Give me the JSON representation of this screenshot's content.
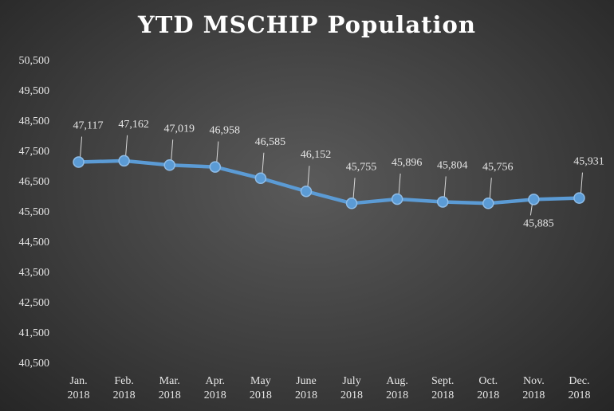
{
  "chart_data": {
    "type": "line",
    "title": "YTD MSCHIP Population",
    "categories": [
      [
        "Jan.",
        "2018"
      ],
      [
        "Feb.",
        "2018"
      ],
      [
        "Mar.",
        "2018"
      ],
      [
        "Apr.",
        "2018"
      ],
      [
        "May",
        "2018"
      ],
      [
        "June",
        "2018"
      ],
      [
        "July",
        "2018"
      ],
      [
        "Aug.",
        "2018"
      ],
      [
        "Sept.",
        "2018"
      ],
      [
        "Oct.",
        "2018"
      ],
      [
        "Nov.",
        "2018"
      ],
      [
        "Dec.",
        "2018"
      ]
    ],
    "series": [
      {
        "values": [
          47117,
          47162,
          47019,
          46958,
          46585,
          46152,
          45755,
          45896,
          45804,
          45756,
          45885,
          45931
        ],
        "labels": [
          "47,117",
          "47,162",
          "47,019",
          "46,958",
          "46,585",
          "46,152",
          "45,755",
          "45,896",
          "45,804",
          "45,756",
          "45,885",
          "45,931"
        ],
        "color": "#5b9bd5"
      }
    ],
    "yticks": [
      "40,500",
      "41,500",
      "42,500",
      "43,500",
      "44,500",
      "45,500",
      "46,500",
      "47,500",
      "48,500",
      "49,500",
      "50,500"
    ],
    "ylim": [
      40500,
      50500
    ],
    "xlabel": "",
    "ylabel": "",
    "grid": false,
    "legend": "none"
  }
}
